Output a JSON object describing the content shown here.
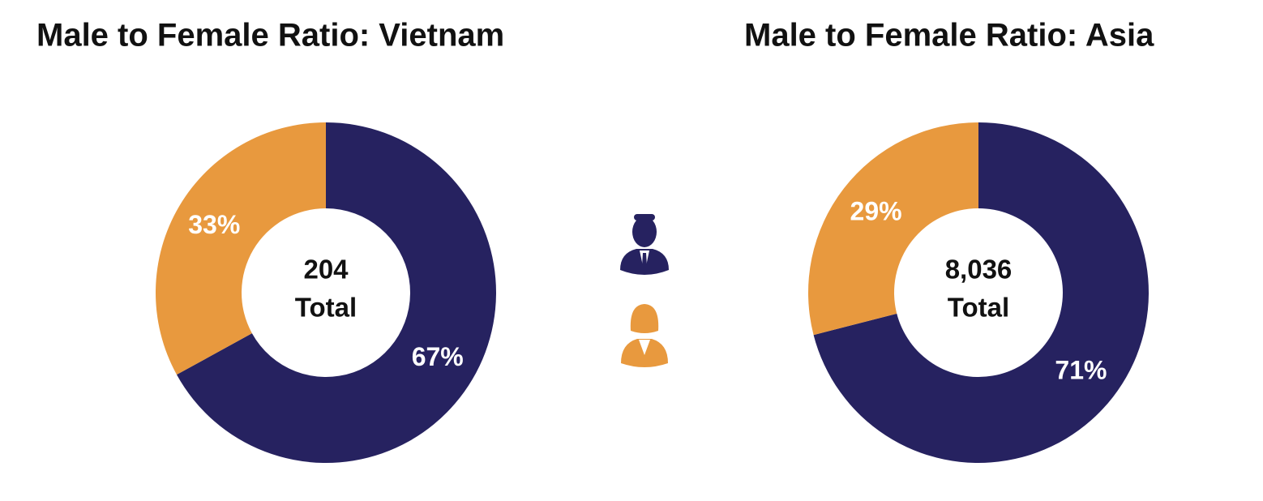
{
  "chart_data": [
    {
      "type": "donut",
      "title": "Male to Female Ratio: Vietnam",
      "values": [
        67,
        33
      ],
      "value_labels": [
        "67%",
        "33%"
      ],
      "colors": [
        "#262260",
        "#e8993e"
      ],
      "total": 204,
      "total_caption": "Total"
    },
    {
      "type": "donut",
      "title": "Male to Female Ratio: Asia",
      "values": [
        71,
        29
      ],
      "value_labels": [
        "71%",
        "29%"
      ],
      "colors": [
        "#262260",
        "#e8993e"
      ],
      "total": {
        "value": 8036,
        "label": "8,036"
      },
      "total_caption": "Total"
    }
  ]
}
